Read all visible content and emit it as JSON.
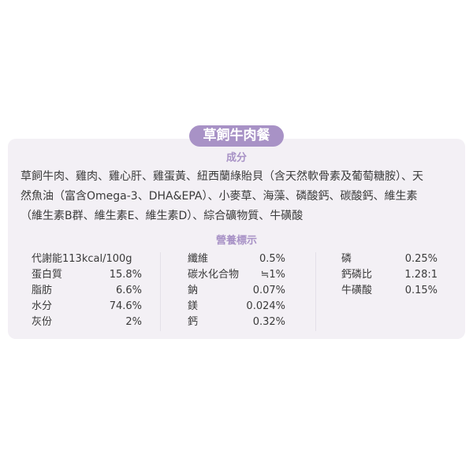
{
  "title": "草飼牛肉餐",
  "ingredients": {
    "heading": "成分",
    "lines": [
      "草飼牛肉、雞肉、雞心肝、雞蛋黃、紐西蘭綠貽貝（含天然軟骨素及葡萄糖胺）、天",
      "然魚油（富含Omega-3、DHA&EPA）、小麥草、海藻、磷酸鈣、碳酸鈣、維生素",
      "（維生素B群、維生素E、維生素D）、綜合礦物質、牛磺酸"
    ]
  },
  "nutrition": {
    "heading": "營養標示",
    "columns": [
      [
        {
          "label": "代謝能113kcal/100g",
          "value": ""
        },
        {
          "label": "蛋白質",
          "value": "15.8%"
        },
        {
          "label": "脂肪",
          "value": "6.6%"
        },
        {
          "label": "水分",
          "value": "74.6%"
        },
        {
          "label": "灰份",
          "value": "2%"
        }
      ],
      [
        {
          "label": "纖維",
          "value": "0.5%"
        },
        {
          "label": "碳水化合物",
          "value": "≒1%"
        },
        {
          "label": "鈉",
          "value": "0.07%"
        },
        {
          "label": "鎂",
          "value": "0.024%"
        },
        {
          "label": "鈣",
          "value": "0.32%"
        }
      ],
      [
        {
          "label": "磷",
          "value": "0.25%"
        },
        {
          "label": "鈣磷比",
          "value": "1.28:1"
        },
        {
          "label": "牛磺酸",
          "value": "0.15%"
        }
      ]
    ]
  },
  "colors": {
    "accent": "#a892c6",
    "card": "#f3f0f5",
    "text": "#3a3a3a"
  }
}
